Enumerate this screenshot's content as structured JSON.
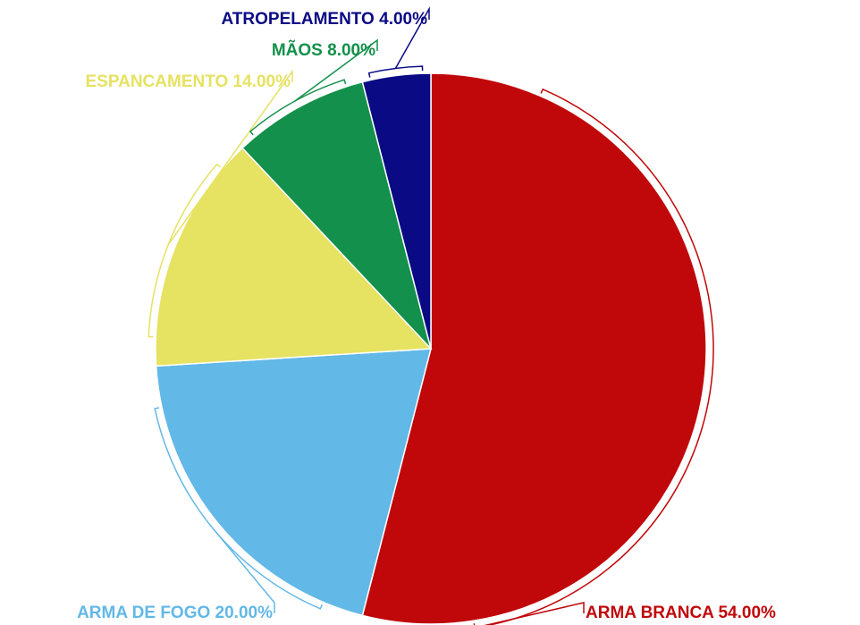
{
  "chart_data": {
    "type": "pie",
    "categories": [
      "ARMA BRANCA",
      "ARMA DE FOGO",
      "ESPANCAMENTO",
      "MÃOS",
      "ATROPELAMENTO"
    ],
    "values": [
      54,
      20,
      14,
      8,
      4
    ],
    "value_labels": [
      "54.00%",
      "20.00%",
      "14.00%",
      "8.00%",
      "4.00%"
    ],
    "colors": [
      "#c0080b",
      "#62b8e6",
      "#e6e262",
      "#13904b",
      "#0a0a85"
    ]
  }
}
